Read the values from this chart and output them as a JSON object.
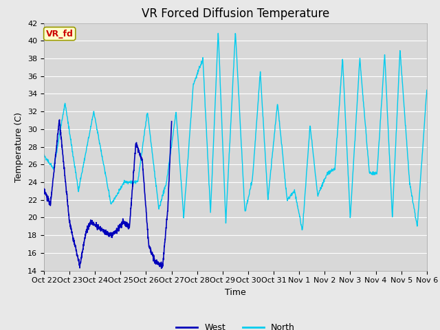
{
  "title": "VR Forced Diffusion Temperature",
  "ylabel": "Temperature (C)",
  "xlabel": "Time",
  "annotation_text": "VR_fd",
  "annotation_bg": "#ffffcc",
  "annotation_border": "#cccc00",
  "annotation_text_color": "#cc0000",
  "ylim": [
    14,
    42
  ],
  "yticks": [
    14,
    16,
    18,
    20,
    22,
    24,
    26,
    28,
    30,
    32,
    34,
    36,
    38,
    40,
    42
  ],
  "xtick_labels": [
    "Oct 22",
    "Oct 23",
    "Oct 24",
    "Oct 25",
    "Oct 26",
    "Oct 27",
    "Oct 28",
    "Oct 29",
    "Oct 30",
    "Oct 31",
    "Nov 1",
    "Nov 2",
    "Nov 3",
    "Nov 4",
    "Nov 5",
    "Nov 6"
  ],
  "west_color": "#0000bb",
  "north_color": "#00ccee",
  "bg_color": "#e8e8e8",
  "plot_bg_color": "#d8d8d8",
  "grid_color": "#ffffff",
  "title_fontsize": 12,
  "label_fontsize": 9,
  "tick_fontsize": 8,
  "west_kp_t": [
    0,
    0.05,
    0.12,
    0.2,
    0.28,
    0.33,
    0.37,
    0.42,
    0.47,
    0.52,
    0.57,
    0.62,
    0.67,
    0.72,
    0.77,
    0.82,
    0.87,
    0.93,
    0.97,
    1.0
  ],
  "west_kp_v": [
    23.0,
    21.5,
    31.0,
    19.5,
    14.5,
    18.5,
    19.5,
    19.0,
    18.5,
    18.0,
    18.5,
    19.5,
    19.0,
    28.5,
    26.5,
    17.0,
    15.0,
    14.5,
    21.0,
    31.0
  ],
  "north_kp_t": [
    0,
    0.025,
    0.055,
    0.09,
    0.13,
    0.175,
    0.21,
    0.245,
    0.27,
    0.3,
    0.32,
    0.345,
    0.365,
    0.39,
    0.415,
    0.435,
    0.455,
    0.475,
    0.5,
    0.525,
    0.545,
    0.565,
    0.585,
    0.61,
    0.635,
    0.655,
    0.675,
    0.695,
    0.715,
    0.74,
    0.76,
    0.78,
    0.8,
    0.825,
    0.85,
    0.87,
    0.89,
    0.91,
    0.93,
    0.955,
    0.975,
    1.0
  ],
  "north_kp_v": [
    27.0,
    25.5,
    33.0,
    23.0,
    32.0,
    21.5,
    24.0,
    24.0,
    32.0,
    21.0,
    24.0,
    32.0,
    20.0,
    35.0,
    38.0,
    20.5,
    41.0,
    19.5,
    41.0,
    20.5,
    24.5,
    36.5,
    22.0,
    33.0,
    22.0,
    23.0,
    18.5,
    30.5,
    22.5,
    25.0,
    25.5,
    38.0,
    20.0,
    38.0,
    25.0,
    25.0,
    38.5,
    20.0,
    39.0,
    24.0,
    19.0,
    34.5
  ]
}
